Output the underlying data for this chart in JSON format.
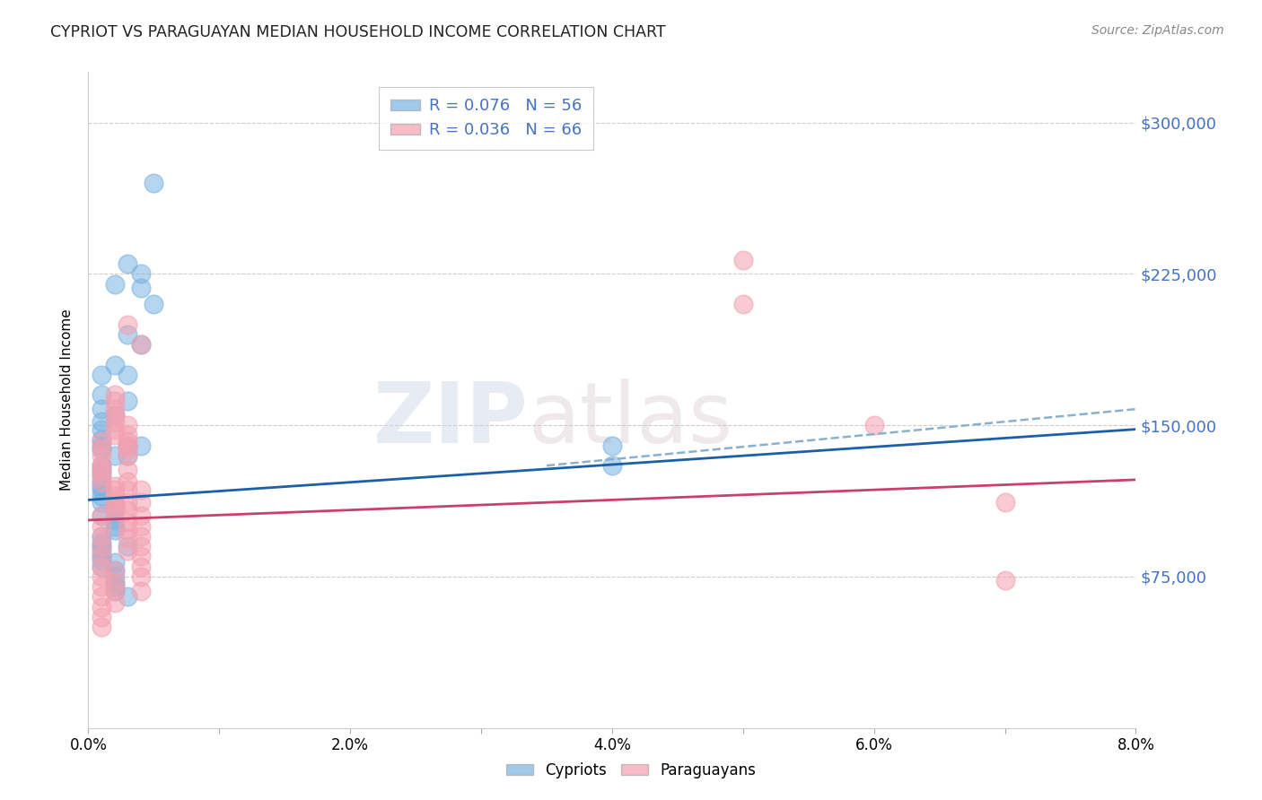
{
  "title": "CYPRIOT VS PARAGUAYAN MEDIAN HOUSEHOLD INCOME CORRELATION CHART",
  "source": "Source: ZipAtlas.com",
  "ylabel": "Median Household Income",
  "xlim": [
    0.0,
    0.08
  ],
  "ylim": [
    0,
    325000
  ],
  "yticks": [
    0,
    75000,
    150000,
    225000,
    300000
  ],
  "ytick_labels": [
    "",
    "$75,000",
    "$150,000",
    "$225,000",
    "$300,000"
  ],
  "xticks": [
    0.0,
    0.01,
    0.02,
    0.03,
    0.04,
    0.05,
    0.06,
    0.07,
    0.08
  ],
  "xtick_labels": [
    "0.0%",
    "",
    "2.0%",
    "",
    "4.0%",
    "",
    "6.0%",
    "",
    "8.0%"
  ],
  "cypriot_color": "#7ab3e0",
  "paraguayan_color": "#f4a0b0",
  "watermark": "ZIPatlas",
  "background_color": "#ffffff",
  "grid_color": "#cccccc",
  "ytick_color": "#4472c4",
  "cypriot_line_color": "#1a5fa8",
  "paraguayan_line_color": "#c94070",
  "dash_line_color": "#8ab0d0",
  "cypriot_points": [
    [
      0.005,
      270000
    ],
    [
      0.003,
      230000
    ],
    [
      0.004,
      225000
    ],
    [
      0.004,
      218000
    ],
    [
      0.002,
      220000
    ],
    [
      0.005,
      210000
    ],
    [
      0.003,
      195000
    ],
    [
      0.004,
      190000
    ],
    [
      0.002,
      180000
    ],
    [
      0.003,
      175000
    ],
    [
      0.001,
      175000
    ],
    [
      0.001,
      165000
    ],
    [
      0.003,
      162000
    ],
    [
      0.001,
      158000
    ],
    [
      0.002,
      155000
    ],
    [
      0.001,
      152000
    ],
    [
      0.001,
      148000
    ],
    [
      0.001,
      143000
    ],
    [
      0.001,
      140000
    ],
    [
      0.001,
      138000
    ],
    [
      0.002,
      135000
    ],
    [
      0.001,
      130000
    ],
    [
      0.001,
      128000
    ],
    [
      0.001,
      125000
    ],
    [
      0.001,
      122000
    ],
    [
      0.001,
      120000
    ],
    [
      0.001,
      118000
    ],
    [
      0.001,
      115000
    ],
    [
      0.001,
      112000
    ],
    [
      0.002,
      110000
    ],
    [
      0.002,
      108000
    ],
    [
      0.001,
      105000
    ],
    [
      0.002,
      103000
    ],
    [
      0.002,
      100000
    ],
    [
      0.002,
      98000
    ],
    [
      0.003,
      140000
    ],
    [
      0.003,
      135000
    ],
    [
      0.001,
      95000
    ],
    [
      0.001,
      92000
    ],
    [
      0.001,
      90000
    ],
    [
      0.001,
      88000
    ],
    [
      0.001,
      85000
    ],
    [
      0.001,
      83000
    ],
    [
      0.001,
      80000
    ],
    [
      0.002,
      82000
    ],
    [
      0.002,
      78000
    ],
    [
      0.002,
      75000
    ],
    [
      0.002,
      72000
    ],
    [
      0.002,
      70000
    ],
    [
      0.002,
      68000
    ],
    [
      0.003,
      90000
    ],
    [
      0.004,
      140000
    ],
    [
      0.04,
      140000
    ],
    [
      0.04,
      130000
    ],
    [
      0.003,
      65000
    ]
  ],
  "paraguayan_points": [
    [
      0.05,
      232000
    ],
    [
      0.05,
      210000
    ],
    [
      0.003,
      200000
    ],
    [
      0.004,
      190000
    ],
    [
      0.002,
      165000
    ],
    [
      0.002,
      162000
    ],
    [
      0.002,
      158000
    ],
    [
      0.002,
      155000
    ],
    [
      0.002,
      152000
    ],
    [
      0.002,
      148000
    ],
    [
      0.002,
      145000
    ],
    [
      0.001,
      142000
    ],
    [
      0.001,
      138000
    ],
    [
      0.001,
      135000
    ],
    [
      0.003,
      150000
    ],
    [
      0.003,
      145000
    ],
    [
      0.003,
      142000
    ],
    [
      0.001,
      130000
    ],
    [
      0.001,
      128000
    ],
    [
      0.001,
      125000
    ],
    [
      0.001,
      122000
    ],
    [
      0.002,
      120000
    ],
    [
      0.002,
      118000
    ],
    [
      0.002,
      115000
    ],
    [
      0.002,
      112000
    ],
    [
      0.002,
      110000
    ],
    [
      0.002,
      108000
    ],
    [
      0.003,
      140000
    ],
    [
      0.003,
      138000
    ],
    [
      0.003,
      135000
    ],
    [
      0.003,
      128000
    ],
    [
      0.003,
      122000
    ],
    [
      0.003,
      118000
    ],
    [
      0.003,
      112000
    ],
    [
      0.003,
      108000
    ],
    [
      0.003,
      102000
    ],
    [
      0.003,
      98000
    ],
    [
      0.003,
      94000
    ],
    [
      0.003,
      88000
    ],
    [
      0.004,
      118000
    ],
    [
      0.004,
      112000
    ],
    [
      0.004,
      105000
    ],
    [
      0.004,
      100000
    ],
    [
      0.004,
      95000
    ],
    [
      0.004,
      90000
    ],
    [
      0.004,
      85000
    ],
    [
      0.004,
      80000
    ],
    [
      0.001,
      105000
    ],
    [
      0.001,
      100000
    ],
    [
      0.001,
      95000
    ],
    [
      0.001,
      90000
    ],
    [
      0.001,
      85000
    ],
    [
      0.001,
      80000
    ],
    [
      0.001,
      75000
    ],
    [
      0.001,
      70000
    ],
    [
      0.001,
      65000
    ],
    [
      0.001,
      60000
    ],
    [
      0.001,
      55000
    ],
    [
      0.001,
      50000
    ],
    [
      0.002,
      78000
    ],
    [
      0.002,
      72000
    ],
    [
      0.002,
      68000
    ],
    [
      0.002,
      62000
    ],
    [
      0.004,
      75000
    ],
    [
      0.004,
      68000
    ],
    [
      0.07,
      112000
    ],
    [
      0.07,
      73000
    ],
    [
      0.06,
      150000
    ]
  ],
  "cy_line": {
    "x0": 0.0,
    "y0": 113000,
    "x1": 0.08,
    "y1": 148000
  },
  "par_line": {
    "x0": 0.0,
    "y0": 103000,
    "x1": 0.08,
    "y1": 123000
  },
  "dash_line": {
    "x0": 0.035,
    "y0": 130000,
    "x1": 0.08,
    "y1": 158000
  }
}
